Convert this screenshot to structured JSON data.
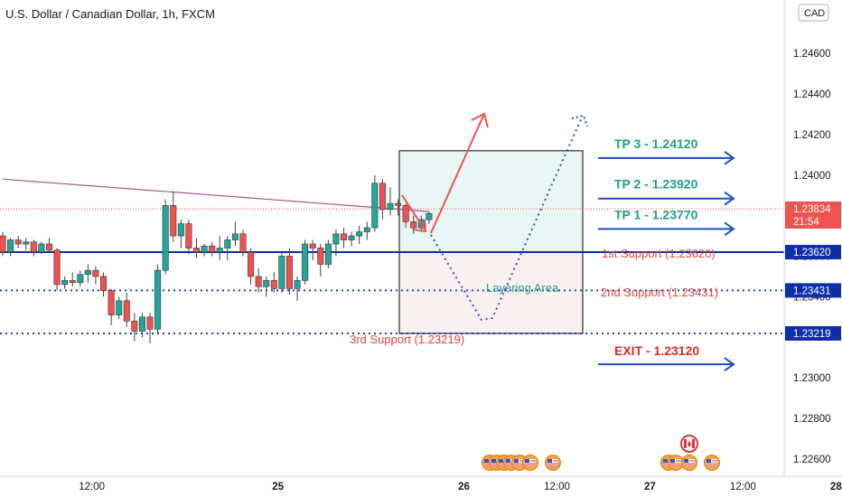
{
  "header": {
    "title": "U.S. Dollar / Canadian Dollar, 1h, FXCM"
  },
  "currency_badge": "CAD",
  "countdown": "21:54",
  "colors": {
    "up": "#26a69a",
    "down": "#ef5350",
    "wick": "#404040",
    "ma": "#9c5c8f",
    "support_solid": "#0d2fa8",
    "support_dotted": "#1a3ec2",
    "price_line": "#ef5350",
    "tp_text": "#1f9e89",
    "arrow_blue": "#1e4fc4",
    "support_text": "#e0463e",
    "exit_text": "#e02b23",
    "target_box": "#e8f6f6",
    "support_box": "#fbf0f0",
    "layering_text": "#1f9e89"
  },
  "annotations": {
    "tp": [
      {
        "label": "TP 3 - 1.24120",
        "price": 1.2412
      },
      {
        "label": "TP 2 - 1.23920",
        "price": 1.2392
      },
      {
        "label": "TP 1 - 1.23770",
        "price": 1.2377
      }
    ],
    "exit": {
      "label": "EXIT - 1.23120",
      "price": 1.2312
    },
    "supports": [
      {
        "label": "1st Support (1.23620)",
        "price": 1.2362
      },
      {
        "label": "2nd Support (1.23431)",
        "price": 1.23431
      },
      {
        "label": "3rd Support (1.23219)",
        "price": 1.23219
      }
    ],
    "layering": "Layering Area"
  },
  "chart_data": {
    "type": "candlestick",
    "title": "U.S. Dollar / Canadian Dollar, 1h, FXCM",
    "ylim": [
      1.2251,
      1.2473
    ],
    "y_ticks": [
      1.246,
      1.244,
      1.242,
      1.24,
      1.238,
      1.236,
      1.234,
      1.232,
      1.23,
      1.228,
      1.226
    ],
    "y_tick_labels": [
      "1.24600",
      "1.24400",
      "1.24200",
      "1.24000",
      "1.23800",
      "1.23600",
      "1.23400",
      "1.23200",
      "1.23000",
      "1.22800",
      "1.22600"
    ],
    "x_ticks": [
      {
        "label": "12:00",
        "bar": 11.5
      },
      {
        "label": "25",
        "bar": 35.5
      },
      {
        "label": "26",
        "bar": 59.5
      },
      {
        "label": "12:00",
        "bar": 71.5
      },
      {
        "label": "27",
        "bar": 83.5
      },
      {
        "label": "12:00",
        "bar": 95.5
      },
      {
        "label": "28",
        "bar": 107.5
      }
    ],
    "candles": [
      [
        1.237,
        1.2372,
        1.236,
        1.2362
      ],
      [
        1.2362,
        1.2369,
        1.236,
        1.2368
      ],
      [
        1.2368,
        1.237,
        1.2364,
        1.2366
      ],
      [
        1.2366,
        1.2369,
        1.2363,
        1.2367
      ],
      [
        1.2367,
        1.2368,
        1.236,
        1.2362
      ],
      [
        1.2362,
        1.2367,
        1.2361,
        1.2366
      ],
      [
        1.2366,
        1.2369,
        1.2362,
        1.2363
      ],
      [
        1.2363,
        1.2364,
        1.2343,
        1.2346
      ],
      [
        1.2346,
        1.235,
        1.2344,
        1.2348
      ],
      [
        1.2348,
        1.2352,
        1.2345,
        1.2347
      ],
      [
        1.2347,
        1.2353,
        1.2345,
        1.2351
      ],
      [
        1.2351,
        1.2356,
        1.2347,
        1.2353
      ],
      [
        1.2353,
        1.2355,
        1.2346,
        1.235
      ],
      [
        1.235,
        1.2352,
        1.234,
        1.2343
      ],
      [
        1.2343,
        1.2344,
        1.2326,
        1.2331
      ],
      [
        1.2331,
        1.234,
        1.2329,
        1.2338
      ],
      [
        1.2338,
        1.2342,
        1.2325,
        1.2328
      ],
      [
        1.2328,
        1.2332,
        1.2318,
        1.2323
      ],
      [
        1.2323,
        1.2332,
        1.232,
        1.233
      ],
      [
        1.233,
        1.2332,
        1.2317,
        1.2324
      ],
      [
        1.2324,
        1.2356,
        1.2322,
        1.2353
      ],
      [
        1.2353,
        1.2388,
        1.2351,
        1.2385
      ],
      [
        1.2385,
        1.2392,
        1.2367,
        1.237
      ],
      [
        1.237,
        1.2378,
        1.2364,
        1.2376
      ],
      [
        1.2376,
        1.2378,
        1.2361,
        1.2364
      ],
      [
        1.2364,
        1.2369,
        1.2359,
        1.2362
      ],
      [
        1.2362,
        1.2366,
        1.236,
        1.2365
      ],
      [
        1.2365,
        1.2367,
        1.236,
        1.2362
      ],
      [
        1.2362,
        1.237,
        1.2358,
        1.2364
      ],
      [
        1.2364,
        1.237,
        1.2358,
        1.2368
      ],
      [
        1.2368,
        1.2377,
        1.2365,
        1.2371
      ],
      [
        1.2371,
        1.2373,
        1.236,
        1.2362
      ],
      [
        1.2362,
        1.2364,
        1.2346,
        1.235
      ],
      [
        1.235,
        1.2354,
        1.2342,
        1.2345
      ],
      [
        1.2345,
        1.235,
        1.234,
        1.2348
      ],
      [
        1.2348,
        1.2352,
        1.2342,
        1.2344
      ],
      [
        1.2344,
        1.2362,
        1.2342,
        1.236
      ],
      [
        1.236,
        1.2364,
        1.2341,
        1.2344
      ],
      [
        1.2344,
        1.235,
        1.2338,
        1.2348
      ],
      [
        1.2348,
        1.2368,
        1.2346,
        1.2366
      ],
      [
        1.2366,
        1.2368,
        1.2358,
        1.2364
      ],
      [
        1.2364,
        1.2366,
        1.235,
        1.2356
      ],
      [
        1.2356,
        1.2368,
        1.2354,
        1.2366
      ],
      [
        1.2366,
        1.2373,
        1.236,
        1.2371
      ],
      [
        1.2371,
        1.2374,
        1.2364,
        1.2368
      ],
      [
        1.2368,
        1.2372,
        1.2365,
        1.237
      ],
      [
        1.237,
        1.2375,
        1.2366,
        1.2372
      ],
      [
        1.2372,
        1.2377,
        1.2368,
        1.2374
      ],
      [
        1.2374,
        1.24,
        1.2372,
        1.2396
      ],
      [
        1.2396,
        1.2398,
        1.2378,
        1.2383
      ],
      [
        1.2383,
        1.2394,
        1.238,
        1.2386
      ],
      [
        1.2386,
        1.2388,
        1.238,
        1.2385
      ],
      [
        1.2385,
        1.2386,
        1.2374,
        1.2377
      ],
      [
        1.2377,
        1.238,
        1.2371,
        1.2374
      ],
      [
        1.2374,
        1.238,
        1.2372,
        1.2378
      ],
      [
        1.2378,
        1.2382,
        1.2376,
        1.2381
      ]
    ],
    "ma_line": [
      1.2398,
      1.2397,
      1.2396,
      1.2395,
      1.2394,
      1.2393,
      1.2392,
      1.2391,
      1.239,
      1.2389,
      1.2388,
      1.2387,
      1.2386,
      1.2385,
      1.2384,
      1.2383,
      1.2382
    ],
    "last_price": 1.23834,
    "last_price_label": "1.23834",
    "price_tags": [
      {
        "label": "1.23620",
        "price": 1.2362
      },
      {
        "label": "1.23431",
        "price": 1.23431
      },
      {
        "label": "1.23219",
        "price": 1.23219
      }
    ]
  }
}
